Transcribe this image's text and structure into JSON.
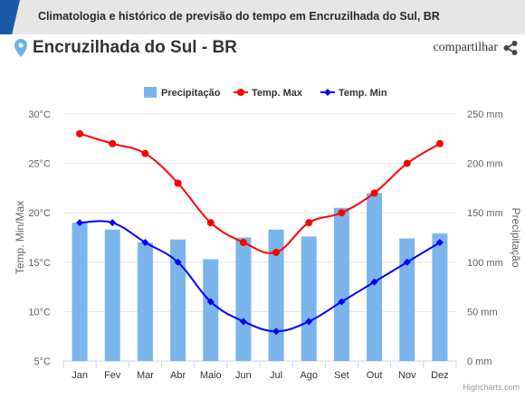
{
  "header": {
    "title": "Climatologia e histórico de previsão do tempo em Encruzilhada do Sul, BR"
  },
  "location": {
    "name": "Encruzilhada do Sul - BR",
    "share_label": "compartilhar"
  },
  "credits": "Highcharts.com",
  "colors": {
    "header_bg": "#e6e6e6",
    "accent": "#1a5aa8",
    "pin": "#6cb0e8",
    "precip": "#7cb5ec",
    "tmax": "#ff0000",
    "tmin": "#0000ff"
  },
  "chart_data": {
    "type": "bar",
    "categories": [
      "Jan",
      "Fev",
      "Mar",
      "Abr",
      "Maio",
      "Jun",
      "Jul",
      "Ago",
      "Set",
      "Out",
      "Nov",
      "Dez"
    ],
    "series": [
      {
        "name": "Precipitação",
        "type": "bar",
        "axis": "right",
        "unit": "mm",
        "values": [
          140,
          133,
          120,
          123,
          103,
          125,
          133,
          126,
          155,
          170,
          124,
          129
        ]
      },
      {
        "name": "Temp. Max",
        "type": "line",
        "axis": "left",
        "unit": "°C",
        "values": [
          28,
          27,
          26,
          23,
          19,
          17,
          16,
          19,
          20,
          22,
          25,
          27
        ]
      },
      {
        "name": "Temp. Min",
        "type": "line",
        "axis": "left",
        "unit": "°C",
        "values": [
          19,
          19,
          17,
          15,
          11,
          9,
          8,
          9,
          11,
          13,
          15,
          17
        ]
      }
    ],
    "ylabel_left": "Temp. Min/Max",
    "ylabel_right": "Precipitação",
    "ylim_left": [
      5,
      30
    ],
    "ylim_right": [
      0,
      250
    ],
    "yticks_left": [
      "5°C",
      "10°C",
      "15°C",
      "20°C",
      "25°C",
      "30°C"
    ],
    "yticks_right": [
      "0 mm",
      "50 mm",
      "100 mm",
      "150 mm",
      "200 mm",
      "250 mm"
    ],
    "grid": true,
    "legend_position": "top"
  }
}
